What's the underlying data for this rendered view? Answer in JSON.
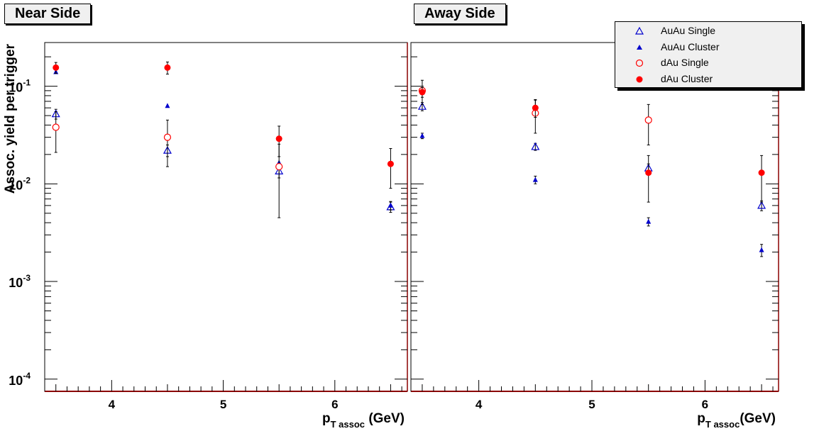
{
  "chart_data": [
    {
      "type": "scatter",
      "title": "Near Side",
      "xlabel_main": "p",
      "xlabel_sub": "T assoc",
      "xlabel_units": " (GeV)",
      "ylabel": "Assoc. yield per trigger",
      "xlim": [
        3.4,
        6.65
      ],
      "ylim": [
        7.5e-05,
        0.28
      ],
      "yscale": "log",
      "xticks": [
        4,
        5,
        6
      ],
      "xtick_labels": [
        "4",
        "5",
        "6"
      ],
      "yticks": [
        0.1,
        0.01,
        0.001,
        0.0001
      ],
      "ytick_base": "10",
      "ytick_exponents": [
        "-1",
        "-2",
        "-3",
        "-4"
      ],
      "series": [
        {
          "name": "AuAu Single",
          "marker": "open-triangle",
          "color": "#0000cc",
          "points": [
            {
              "x": 3.5,
              "y": 0.052,
              "err": 0.006
            },
            {
              "x": 4.5,
              "y": 0.022,
              "err": 0.003
            },
            {
              "x": 5.5,
              "y": 0.0135,
              "err": 0.002
            },
            {
              "x": 6.5,
              "y": 0.0058,
              "err": 0.0007
            }
          ]
        },
        {
          "name": "AuAu Cluster",
          "marker": "filled-triangle",
          "color": "#0000cc",
          "points": [
            {
              "x": 3.5,
              "y": 0.14,
              "err": 0
            },
            {
              "x": 4.5,
              "y": 0.063,
              "err": 0
            },
            {
              "x": 5.5,
              "y": 0.0165,
              "err": 0
            },
            {
              "x": 6.5,
              "y": 0.006,
              "err": 0.0006
            }
          ]
        },
        {
          "name": "dAu Single",
          "marker": "open-circle",
          "color": "#ff0000",
          "points": [
            {
              "x": 3.5,
              "y": 0.038,
              "err": 0.017
            },
            {
              "x": 4.5,
              "y": 0.03,
              "err": 0.015
            },
            {
              "x": 5.5,
              "y": 0.015,
              "err": 0.0105
            }
          ]
        },
        {
          "name": "dAu Cluster",
          "marker": "filled-circle",
          "color": "#ff0000",
          "points": [
            {
              "x": 3.5,
              "y": 0.155,
              "err": 0.02
            },
            {
              "x": 4.5,
              "y": 0.155,
              "err": 0.022
            },
            {
              "x": 5.5,
              "y": 0.029,
              "err": 0.01
            },
            {
              "x": 6.5,
              "y": 0.016,
              "err": 0.007
            }
          ]
        }
      ]
    },
    {
      "type": "scatter",
      "title": "Away Side",
      "xlabel_main": "p",
      "xlabel_sub": "T assoc",
      "xlabel_units": "(GeV)",
      "xlim": [
        3.4,
        6.65
      ],
      "ylim": [
        7.5e-05,
        0.28
      ],
      "yscale": "log",
      "xticks": [
        4,
        5,
        6
      ],
      "xtick_labels": [
        "4",
        "5",
        "6"
      ],
      "series": [
        {
          "name": "AuAu Single",
          "marker": "open-triangle",
          "color": "#0000cc",
          "points": [
            {
              "x": 3.5,
              "y": 0.062,
              "err": 0.006
            },
            {
              "x": 4.5,
              "y": 0.024,
              "err": 0.002
            },
            {
              "x": 5.5,
              "y": 0.0145,
              "err": 0.0015
            },
            {
              "x": 6.5,
              "y": 0.006,
              "err": 0.0007
            }
          ]
        },
        {
          "name": "AuAu Cluster",
          "marker": "filled-triangle",
          "color": "#0000cc",
          "points": [
            {
              "x": 3.5,
              "y": 0.031,
              "err": 0.002
            },
            {
              "x": 4.5,
              "y": 0.011,
              "err": 0.001
            },
            {
              "x": 5.5,
              "y": 0.0041,
              "err": 0.0004
            },
            {
              "x": 6.5,
              "y": 0.0021,
              "err": 0.0003
            }
          ]
        },
        {
          "name": "dAu Single",
          "marker": "open-circle",
          "color": "#ff0000",
          "points": [
            {
              "x": 3.5,
              "y": 0.09,
              "err": 0.025
            },
            {
              "x": 4.5,
              "y": 0.053,
              "err": 0.02
            },
            {
              "x": 5.5,
              "y": 0.045,
              "err": 0.02
            }
          ]
        },
        {
          "name": "dAu Cluster",
          "marker": "filled-circle",
          "color": "#ff0000",
          "points": [
            {
              "x": 3.5,
              "y": 0.087,
              "err": 0.01
            },
            {
              "x": 4.5,
              "y": 0.06,
              "err": 0.012
            },
            {
              "x": 5.5,
              "y": 0.013,
              "err": 0.0065
            },
            {
              "x": 6.5,
              "y": 0.013,
              "err": 0.0065
            }
          ]
        }
      ]
    }
  ],
  "legend": {
    "placement": "top-right",
    "entries": [
      {
        "label": "AuAu Single",
        "marker": "open-triangle",
        "color": "#0000cc"
      },
      {
        "label": "AuAu Cluster",
        "marker": "filled-triangle",
        "color": "#0000cc"
      },
      {
        "label": "dAu Single",
        "marker": "open-circle",
        "color": "#ff0000"
      },
      {
        "label": "dAu Cluster",
        "marker": "filled-circle",
        "color": "#ff0000"
      }
    ]
  },
  "colors": {
    "frame": "#000000",
    "baseline": "#8b0000",
    "title_bg": "#f0f0f0",
    "errorbar": "#000000"
  }
}
